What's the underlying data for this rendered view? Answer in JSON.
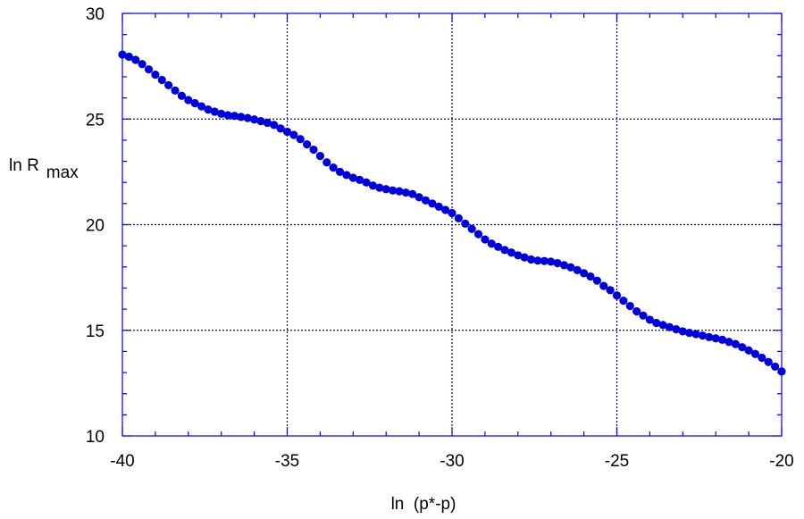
{
  "chart_data": {
    "type": "scatter",
    "xlabel": "ln  (p*-p)",
    "ylabel_main": "ln  R",
    "ylabel_sub": "max",
    "xlim": [
      -40,
      -20
    ],
    "ylim": [
      10,
      30
    ],
    "xticks": [
      -40,
      -35,
      -30,
      -25,
      -20
    ],
    "yticks": [
      10,
      15,
      20,
      25,
      30
    ],
    "grid": true,
    "marker_color": "#0000dd",
    "series": [
      {
        "x": [
          -40.0,
          -39.8,
          -39.6,
          -39.4,
          -39.2,
          -39.0,
          -38.8,
          -38.6,
          -38.4,
          -38.2,
          -38.0,
          -37.8,
          -37.6,
          -37.4,
          -37.2,
          -37.0,
          -36.8,
          -36.6,
          -36.4,
          -36.2,
          -36.0,
          -35.8,
          -35.6,
          -35.4,
          -35.2,
          -35.0,
          -34.8,
          -34.6,
          -34.4,
          -34.2,
          -34.0,
          -33.8,
          -33.6,
          -33.4,
          -33.2,
          -33.0,
          -32.8,
          -32.6,
          -32.4,
          -32.2,
          -32.0,
          -31.8,
          -31.6,
          -31.4,
          -31.2,
          -31.0,
          -30.8,
          -30.6,
          -30.4,
          -30.2,
          -30.0,
          -29.8,
          -29.6,
          -29.4,
          -29.2,
          -29.0,
          -28.8,
          -28.6,
          -28.4,
          -28.2,
          -28.0,
          -27.8,
          -27.6,
          -27.4,
          -27.2,
          -27.0,
          -26.8,
          -26.6,
          -26.4,
          -26.2,
          -26.0,
          -25.8,
          -25.6,
          -25.4,
          -25.2,
          -25.0,
          -24.8,
          -24.6,
          -24.4,
          -24.2,
          -24.0,
          -23.8,
          -23.6,
          -23.4,
          -23.2,
          -23.0,
          -22.8,
          -22.6,
          -22.4,
          -22.2,
          -22.0,
          -21.8,
          -21.6,
          -21.4,
          -21.2,
          -21.0,
          -20.8,
          -20.6,
          -20.4,
          -20.2,
          -20.0
        ],
        "y": [
          28.05,
          27.95,
          27.8,
          27.6,
          27.35,
          27.1,
          26.85,
          26.6,
          26.35,
          26.1,
          25.9,
          25.75,
          25.6,
          25.45,
          25.35,
          25.25,
          25.18,
          25.15,
          25.1,
          25.05,
          24.98,
          24.9,
          24.82,
          24.72,
          24.55,
          24.4,
          24.25,
          24.05,
          23.8,
          23.55,
          23.25,
          22.95,
          22.7,
          22.5,
          22.35,
          22.22,
          22.12,
          22.0,
          21.85,
          21.75,
          21.68,
          21.62,
          21.58,
          21.52,
          21.45,
          21.3,
          21.15,
          21.0,
          20.85,
          20.7,
          20.55,
          20.3,
          20.05,
          19.8,
          19.55,
          19.3,
          19.1,
          18.95,
          18.8,
          18.68,
          18.55,
          18.45,
          18.35,
          18.3,
          18.28,
          18.25,
          18.18,
          18.08,
          17.98,
          17.85,
          17.7,
          17.55,
          17.35,
          17.1,
          16.9,
          16.65,
          16.4,
          16.15,
          15.9,
          15.7,
          15.5,
          15.35,
          15.25,
          15.15,
          15.05,
          14.95,
          14.88,
          14.82,
          14.75,
          14.68,
          14.62,
          14.55,
          14.45,
          14.35,
          14.2,
          14.05,
          13.88,
          13.7,
          13.5,
          13.28,
          13.05
        ]
      }
    ]
  }
}
